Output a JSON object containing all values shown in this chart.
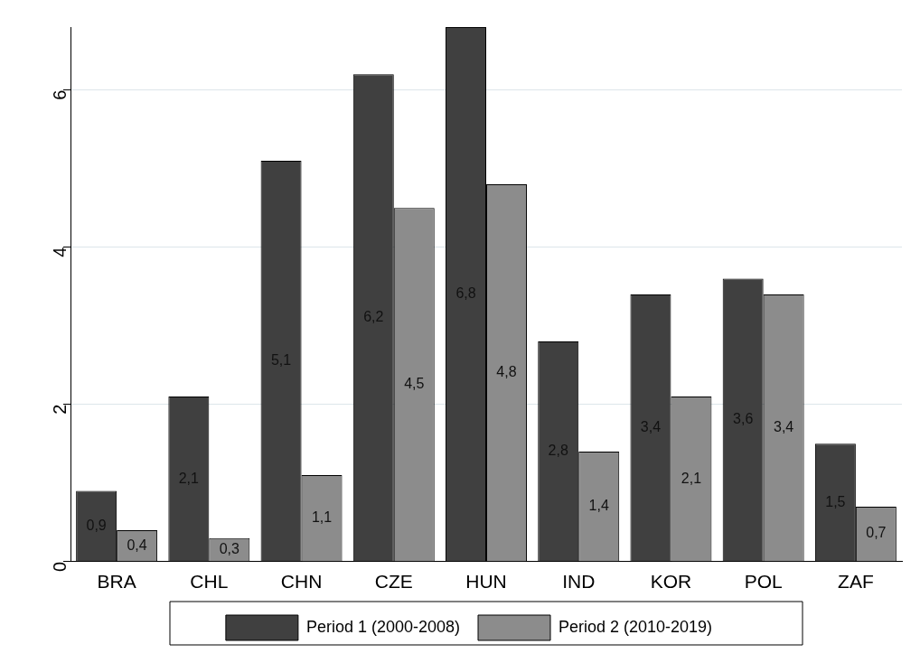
{
  "chart_data": {
    "type": "bar",
    "categories": [
      "BRA",
      "CHL",
      "CHN",
      "CZE",
      "HUN",
      "IND",
      "KOR",
      "POL",
      "ZAF"
    ],
    "series": [
      {
        "name": "Period 1 (2000-2008)",
        "color": "#404040",
        "values": [
          0.9,
          2.1,
          5.1,
          6.2,
          6.8,
          2.8,
          3.4,
          3.6,
          1.5
        ],
        "value_labels": [
          "0,9",
          "2,1",
          "5,1",
          "6,2",
          "6,8",
          "2,8",
          "3,4",
          "3,6",
          "1,5"
        ]
      },
      {
        "name": "Period 2 (2010-2019)",
        "color": "#8c8c8c",
        "values": [
          0.4,
          0.3,
          1.1,
          4.5,
          4.8,
          1.4,
          2.1,
          3.4,
          0.7
        ],
        "value_labels": [
          "0,4",
          "0,3",
          "1,1",
          "4,5",
          "4,8",
          "1,4",
          "2,1",
          "3,4",
          "0,7"
        ]
      }
    ],
    "ylim": [
      0,
      6.8
    ],
    "yticks": [
      0,
      2,
      4,
      6
    ],
    "grid": "y",
    "legend": "bottom"
  }
}
